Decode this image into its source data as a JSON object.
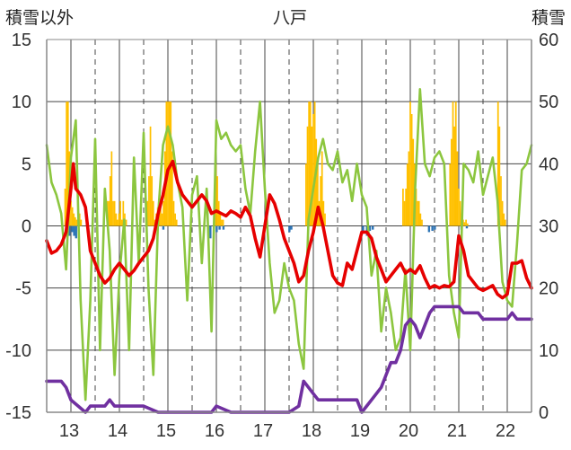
{
  "chart_data": {
    "type": "bar+line",
    "title": "八戸",
    "ylabel_left": "積雪以外",
    "ylabel_right": "積雪",
    "ylim_left": [
      -15,
      15
    ],
    "yticks_left": [
      -15,
      -10,
      -5,
      0,
      5,
      10,
      15
    ],
    "ylim_right": [
      0,
      60
    ],
    "yticks_right": [
      0,
      10,
      20,
      30,
      40,
      50,
      60
    ],
    "x_range": [
      12.5,
      22.5
    ],
    "x_ticks": [
      13,
      14,
      15,
      16,
      17,
      18,
      19,
      20,
      21,
      22
    ],
    "x_tick_labels": [
      "13",
      "14",
      "15",
      "16",
      "17",
      "18",
      "19",
      "20",
      "21",
      "22"
    ],
    "grid": true,
    "colors": {
      "temperature": "#e60000",
      "green_series": "#8cc63f",
      "snow_depth": "#7030a0",
      "positive_bars": "#ffc000",
      "negative_bars": "#2e75b6",
      "grid": "#444444",
      "axis": "#888888"
    },
    "series": [
      {
        "name": "red",
        "axis": "left",
        "x": [
          12.5,
          12.6,
          12.7,
          12.8,
          12.9,
          13.0,
          13.05,
          13.1,
          13.2,
          13.3,
          13.4,
          13.5,
          13.6,
          13.7,
          13.8,
          13.9,
          14.0,
          14.1,
          14.2,
          14.3,
          14.4,
          14.5,
          14.6,
          14.7,
          14.8,
          14.9,
          15.0,
          15.1,
          15.2,
          15.3,
          15.4,
          15.5,
          15.6,
          15.7,
          15.8,
          15.9,
          16.0,
          16.1,
          16.2,
          16.3,
          16.4,
          16.5,
          16.6,
          16.7,
          16.8,
          16.9,
          17.0,
          17.1,
          17.2,
          17.3,
          17.4,
          17.5,
          17.6,
          17.7,
          17.8,
          17.9,
          18.0,
          18.1,
          18.2,
          18.3,
          18.4,
          18.5,
          18.6,
          18.7,
          18.8,
          18.9,
          19.0,
          19.1,
          19.2,
          19.3,
          19.4,
          19.5,
          19.6,
          19.7,
          19.8,
          19.9,
          20.0,
          20.1,
          20.2,
          20.3,
          20.4,
          20.5,
          20.6,
          20.7,
          20.8,
          20.9,
          21.0,
          21.1,
          21.2,
          21.3,
          21.4,
          21.5,
          21.6,
          21.7,
          21.8,
          21.9,
          22.0,
          22.1,
          22.2,
          22.3,
          22.4,
          22.5
        ],
        "values": [
          -1.2,
          -2.2,
          -2.0,
          -1.5,
          -0.5,
          3.0,
          5.0,
          3.0,
          2.5,
          1.5,
          -2.0,
          -3.0,
          -4.0,
          -4.6,
          -4.2,
          -3.5,
          -3.0,
          -3.5,
          -4.0,
          -3.6,
          -3.0,
          -2.5,
          -2.0,
          -1.0,
          1.0,
          2.5,
          4.5,
          5.2,
          3.5,
          2.5,
          2.0,
          1.5,
          2.0,
          2.5,
          2.0,
          1.0,
          1.2,
          1.0,
          0.8,
          1.2,
          1.0,
          0.7,
          1.5,
          0.8,
          -1.0,
          -2.5,
          0.0,
          2.5,
          1.8,
          0.5,
          -1.0,
          -2.0,
          -3.0,
          -4.5,
          -4.0,
          -2.0,
          -0.5,
          1.5,
          0.0,
          -2.0,
          -4.0,
          -4.6,
          -4.8,
          -3.0,
          -3.5,
          -2.0,
          -0.5,
          -0.5,
          -1.0,
          -2.5,
          -3.5,
          -4.5,
          -4.0,
          -3.5,
          -3.0,
          -3.8,
          -3.5,
          -3.8,
          -3.2,
          -4.2,
          -5.0,
          -4.8,
          -5.0,
          -4.8,
          -4.9,
          -4.5,
          -0.8,
          -2.0,
          -4.0,
          -4.5,
          -5.0,
          -5.2,
          -5.0,
          -4.8,
          -5.5,
          -5.8,
          -5.5,
          -3.0,
          -3.0,
          -2.8,
          -4.2,
          -5.0
        ]
      },
      {
        "name": "green",
        "axis": "left",
        "x": [
          12.5,
          12.6,
          12.7,
          12.8,
          12.9,
          13.0,
          13.1,
          13.2,
          13.3,
          13.4,
          13.5,
          13.6,
          13.7,
          13.8,
          13.9,
          14.0,
          14.1,
          14.2,
          14.3,
          14.4,
          14.5,
          14.6,
          14.7,
          14.8,
          14.9,
          15.0,
          15.1,
          15.2,
          15.3,
          15.4,
          15.5,
          15.6,
          15.7,
          15.8,
          15.9,
          16.0,
          16.1,
          16.2,
          16.3,
          16.4,
          16.5,
          16.6,
          16.7,
          16.8,
          16.9,
          17.0,
          17.1,
          17.2,
          17.3,
          17.4,
          17.5,
          17.6,
          17.7,
          17.8,
          17.9,
          18.0,
          18.1,
          18.2,
          18.3,
          18.4,
          18.5,
          18.6,
          18.7,
          18.8,
          18.9,
          19.0,
          19.1,
          19.2,
          19.3,
          19.4,
          19.5,
          19.6,
          19.7,
          19.8,
          19.9,
          20.0,
          20.1,
          20.2,
          20.3,
          20.4,
          20.5,
          20.6,
          20.7,
          20.8,
          20.9,
          21.0,
          21.1,
          21.2,
          21.3,
          21.4,
          21.5,
          21.6,
          21.7,
          21.8,
          21.9,
          22.0,
          22.1,
          22.2,
          22.3,
          22.4,
          22.5
        ],
        "values": [
          6.5,
          3.5,
          2.5,
          1.0,
          -3.5,
          5.5,
          8.5,
          -6.0,
          -14.0,
          -6.0,
          7.0,
          -10.0,
          3.0,
          -2.0,
          -12.0,
          -4.0,
          0.5,
          -10.0,
          5.5,
          -3.0,
          7.5,
          -5.0,
          -12.0,
          1.0,
          6.5,
          8.0,
          6.5,
          3.5,
          1.5,
          -6.0,
          2.5,
          4.0,
          -3.0,
          3.0,
          -8.5,
          8.5,
          7.0,
          7.5,
          6.5,
          6.0,
          6.5,
          3.0,
          1.0,
          6.0,
          10.0,
          3.0,
          -3.0,
          -7.0,
          -6.0,
          -3.0,
          -5.0,
          -6.0,
          -9.5,
          -11.5,
          0.5,
          3.0,
          5.5,
          7.0,
          5.0,
          4.5,
          6.0,
          3.5,
          4.5,
          2.0,
          5.0,
          2.5,
          1.5,
          -4.0,
          -2.0,
          -8.5,
          -5.0,
          -7.0,
          -10.0,
          -9.0,
          -3.5,
          -10.0,
          3.0,
          11.0,
          5.0,
          4.0,
          5.5,
          6.0,
          5.0,
          -4.0,
          -7.0,
          -9.0,
          5.0,
          4.5,
          3.5,
          6.0,
          2.5,
          4.0,
          5.5,
          2.0,
          -4.5,
          -6.0,
          -6.5,
          -1.5,
          4.5,
          5.0,
          6.5
        ]
      },
      {
        "name": "purple",
        "axis": "right",
        "x": [
          12.5,
          12.8,
          12.9,
          13.0,
          13.3,
          13.4,
          13.7,
          13.8,
          13.9,
          14.5,
          14.8,
          15.0,
          15.5,
          15.9,
          16.0,
          16.3,
          16.5,
          17.0,
          17.5,
          17.7,
          17.8,
          17.9,
          18.0,
          18.1,
          18.3,
          18.6,
          18.8,
          18.9,
          19.0,
          19.1,
          19.3,
          19.4,
          19.5,
          19.6,
          19.7,
          19.8,
          19.9,
          20.0,
          20.1,
          20.2,
          20.3,
          20.4,
          20.5,
          20.8,
          21.0,
          21.1,
          21.4,
          21.5,
          21.8,
          22.0,
          22.1,
          22.2,
          22.5
        ],
        "values": [
          5,
          5,
          4,
          2,
          0,
          1,
          1,
          2,
          1,
          1,
          0,
          0,
          0,
          0,
          1,
          0,
          0,
          0,
          0,
          1,
          5,
          4,
          3,
          2,
          2,
          2,
          2,
          2,
          0,
          1,
          3,
          4,
          6,
          8,
          8,
          10,
          14,
          15,
          14,
          12,
          14,
          16,
          17,
          17,
          17,
          16,
          16,
          15,
          15,
          15,
          16,
          15,
          15
        ]
      }
    ],
    "positive_bars": {
      "axis": "left",
      "x": [
        12.88,
        12.91,
        12.94,
        12.97,
        13.0,
        13.03,
        13.06,
        13.09,
        13.12,
        13.15,
        13.18,
        13.21,
        13.75,
        13.78,
        13.81,
        13.84,
        13.87,
        13.9,
        13.93,
        13.96,
        13.99,
        14.02,
        14.05,
        14.08,
        14.11,
        14.14,
        14.55,
        14.58,
        14.61,
        14.64,
        14.67,
        14.7,
        14.73,
        14.76,
        14.79,
        14.82,
        14.85,
        14.88,
        14.91,
        14.94,
        14.97,
        15.0,
        15.03,
        15.06,
        15.09,
        15.12,
        15.15,
        15.18,
        15.96,
        15.99,
        16.02,
        16.05,
        16.08,
        16.11,
        16.14,
        17.85,
        17.88,
        17.91,
        17.94,
        17.97,
        18.0,
        18.03,
        18.06,
        18.09,
        18.12,
        18.15,
        18.18,
        18.21,
        18.24,
        19.85,
        19.88,
        19.91,
        19.94,
        19.97,
        20.0,
        20.03,
        20.06,
        20.09,
        20.12,
        20.15,
        20.18,
        20.21,
        20.24,
        20.82,
        20.85,
        20.88,
        20.91,
        20.94,
        20.97,
        21.0,
        21.03,
        21.06,
        21.09,
        21.12,
        21.15,
        21.18,
        21.81,
        21.84,
        21.87,
        21.9,
        21.93,
        21.96
      ],
      "values": [
        3,
        10,
        10,
        6,
        2,
        1.5,
        1,
        0.7,
        0.5,
        0.3,
        1,
        0.5,
        2,
        2,
        4,
        6,
        2,
        2,
        1,
        0.5,
        1,
        2,
        0.5,
        2,
        1,
        0.5,
        1,
        2,
        4,
        8,
        4,
        2,
        0.5,
        1,
        1.5,
        2,
        2,
        1,
        2,
        6,
        10,
        10,
        10,
        10,
        6,
        2,
        1,
        0.5,
        2,
        5,
        4,
        2,
        1,
        0.5,
        0.5,
        5,
        8,
        10,
        10,
        8,
        9,
        10,
        7,
        5,
        2,
        4,
        6,
        2,
        1,
        3,
        2,
        3,
        5,
        6,
        10,
        9,
        7,
        5,
        3,
        2,
        2,
        1,
        0.5,
        5,
        7,
        10,
        8,
        10,
        6,
        3,
        2,
        1,
        0.5,
        0.3,
        0.5,
        0.2,
        10,
        8,
        4,
        2,
        1,
        0.5
      ]
    },
    "negative_bars": {
      "axis": "left",
      "x": [
        12.96,
        13.02,
        13.06,
        13.1,
        14.9,
        15.87,
        16.0,
        16.06,
        16.14,
        17.5,
        17.54,
        19.02,
        19.1,
        19.16,
        19.22,
        20.38,
        20.45,
        20.5,
        21.05,
        21.16
      ],
      "values": [
        -0.8,
        -0.5,
        -0.8,
        -1.0,
        -0.3,
        -1.0,
        -0.5,
        -0.3,
        -0.3,
        -0.5,
        -0.3,
        -0.5,
        -0.8,
        -0.4,
        -0.3,
        -0.5,
        -0.4,
        -0.3,
        -0.3,
        -0.2
      ]
    }
  }
}
